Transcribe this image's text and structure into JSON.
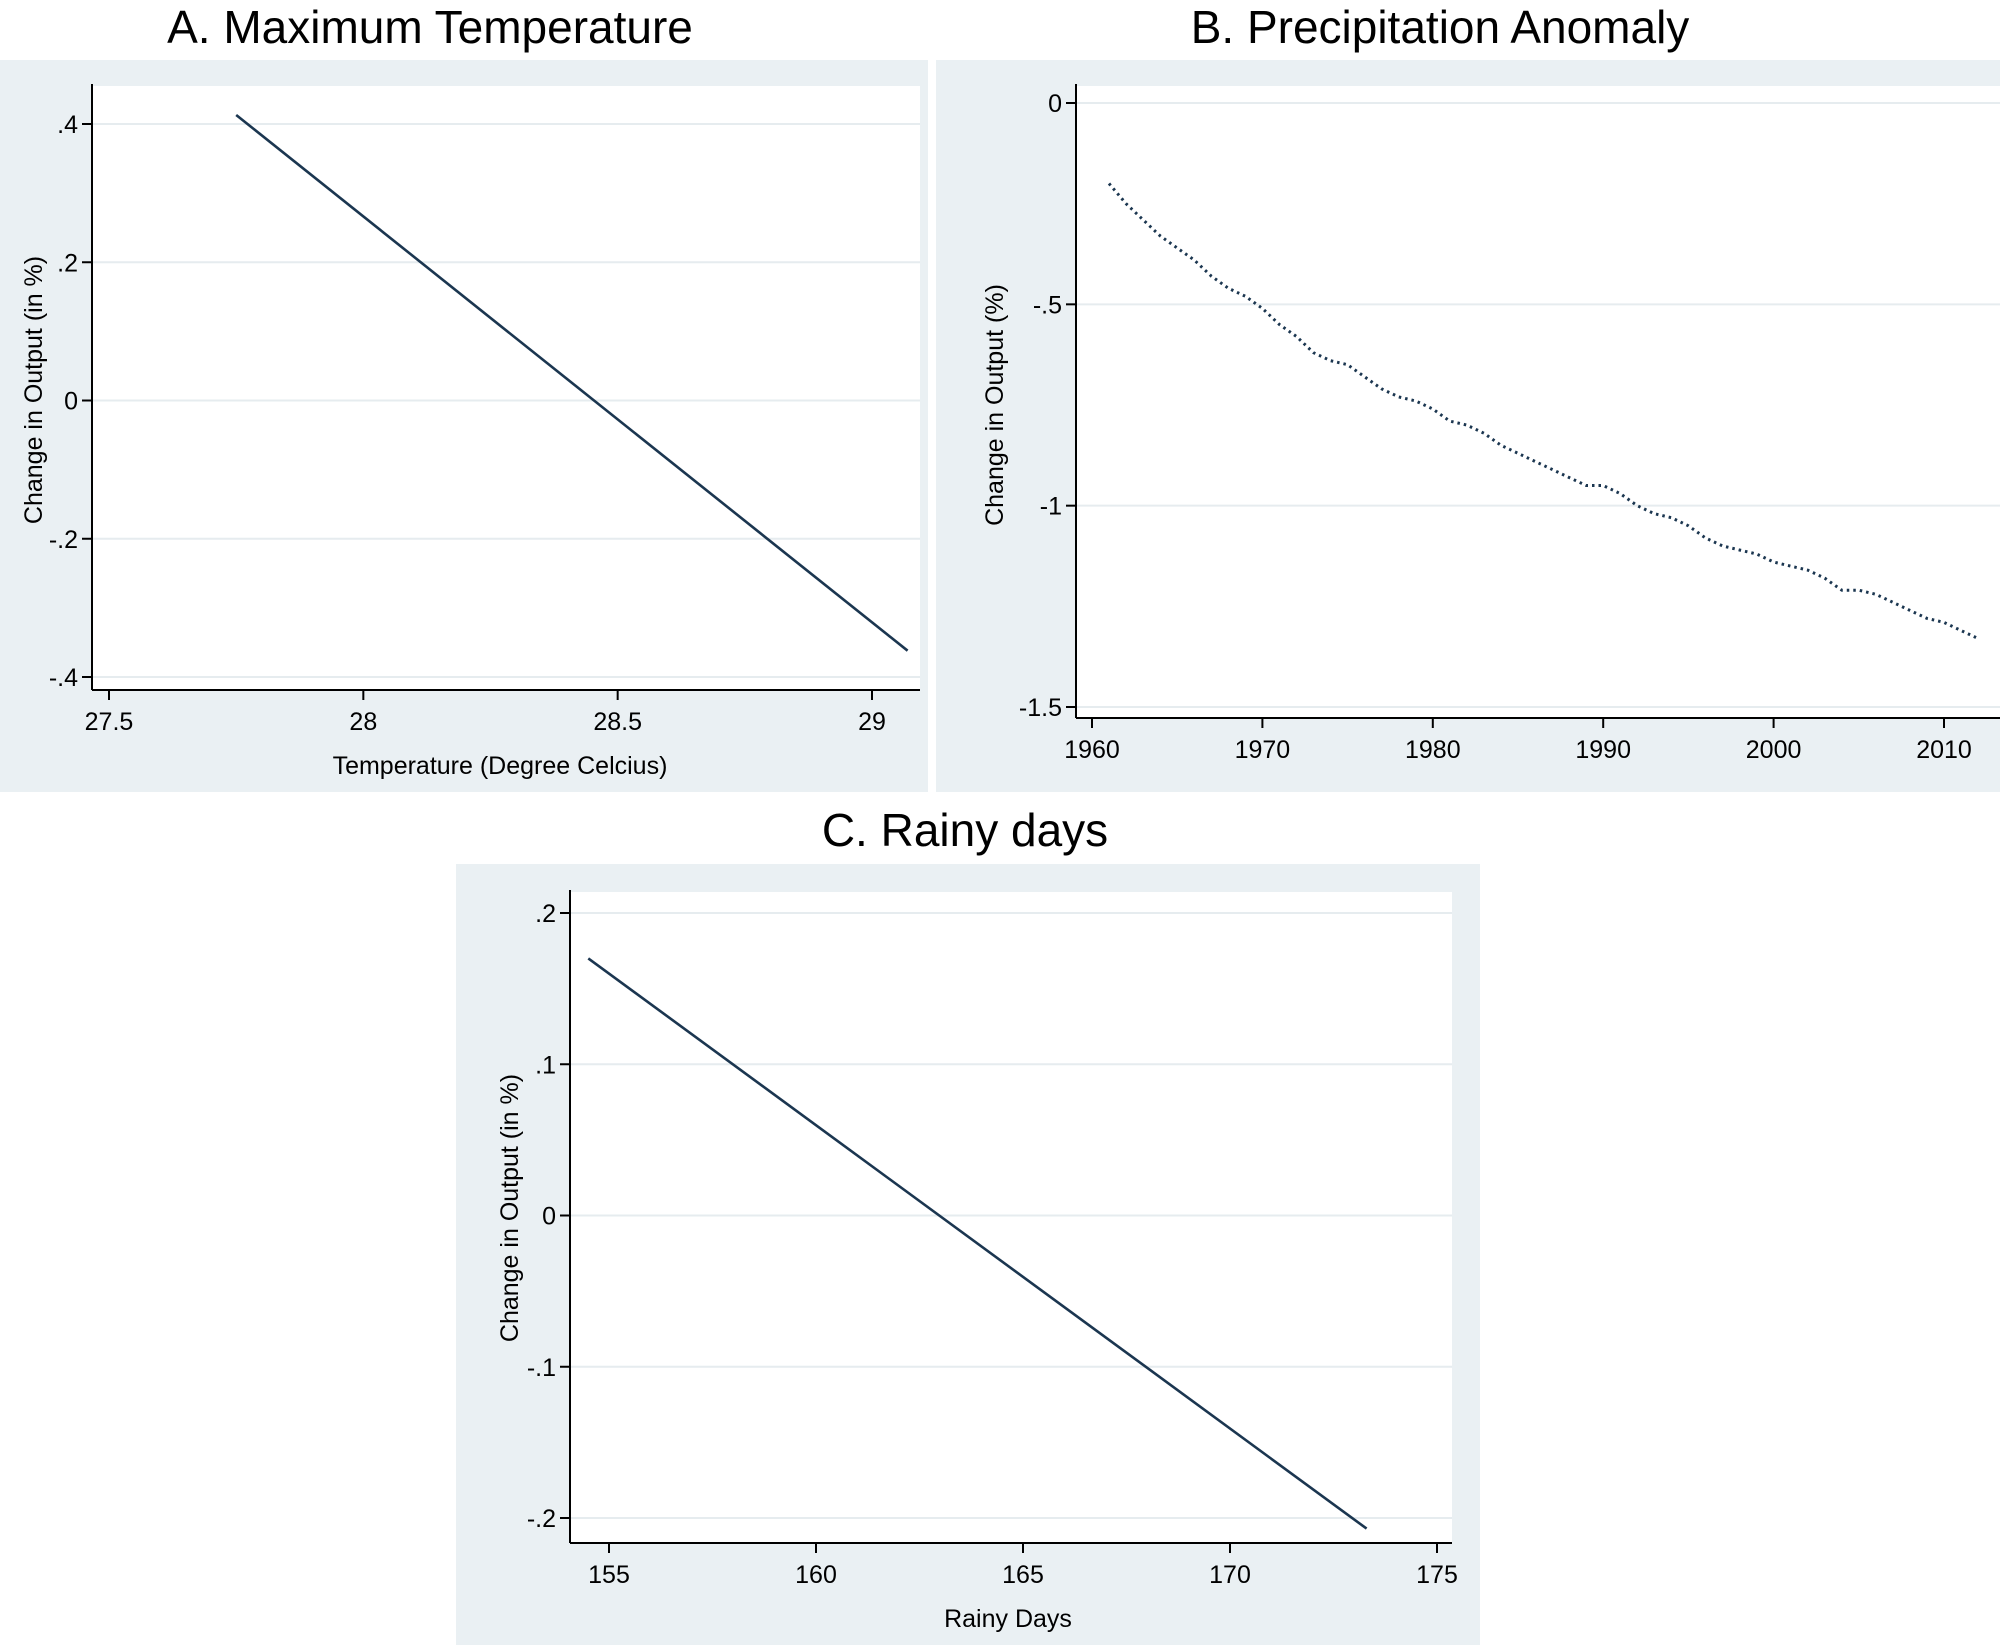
{
  "colors": {
    "panel_bg": "#eaf0f3",
    "plot_bg": "#ffffff",
    "grid": "#e6ecef",
    "line": "#1b3650",
    "axis": "#000000"
  },
  "chart_data": [
    {
      "type": "line",
      "title": "A. Maximum Temperature",
      "xlabel": "Temperature (Degree Celcius)",
      "ylabel": "Change in Output (in %)",
      "xlim": [
        27.5,
        29.05
      ],
      "ylim": [
        -0.4,
        0.45
      ],
      "xticks": [
        27.5,
        28,
        28.5,
        29
      ],
      "xtick_labels": [
        "27.5",
        "28",
        "28.5",
        "29"
      ],
      "yticks": [
        0.4,
        0.2,
        0,
        -0.2,
        -0.4
      ],
      "ytick_labels": [
        ".4",
        ".2",
        "0",
        "-.2",
        "-.4"
      ],
      "grid": true,
      "line_style": "solid",
      "series": [
        {
          "x": [
            27.75,
            29.07
          ],
          "values": [
            0.413,
            -0.362
          ]
        }
      ]
    },
    {
      "type": "line",
      "title": "B. Precipitation Anomaly",
      "xlabel": "",
      "ylabel": "Change in Output (%)",
      "xlim": [
        1959,
        2014
      ],
      "ylim": [
        -1.5,
        0
      ],
      "xticks": [
        1960,
        1970,
        1980,
        1990,
        2000,
        2010
      ],
      "xtick_labels": [
        "1960",
        "1970",
        "1980",
        "1990",
        "2000",
        "2010"
      ],
      "yticks": [
        0,
        -0.5,
        -1,
        -1.5
      ],
      "ytick_labels": [
        "0",
        "-.5",
        "-1",
        "-1.5"
      ],
      "grid": true,
      "line_style": "dotted",
      "series": [
        {
          "x": [
            1961,
            1962,
            1963,
            1964,
            1965,
            1966,
            1967,
            1968,
            1969,
            1970,
            1971,
            1972,
            1973,
            1974,
            1975,
            1976,
            1977,
            1978,
            1979,
            1980,
            1981,
            1982,
            1983,
            1984,
            1985,
            1986,
            1987,
            1988,
            1989,
            1990,
            1991,
            1992,
            1993,
            1994,
            1995,
            1996,
            1997,
            1998,
            1999,
            2000,
            2001,
            2002,
            2003,
            2004,
            2005,
            2006,
            2007,
            2008,
            2009,
            2010,
            2011,
            2012
          ],
          "values": [
            -0.2,
            -0.25,
            -0.29,
            -0.33,
            -0.36,
            -0.39,
            -0.43,
            -0.46,
            -0.48,
            -0.51,
            -0.55,
            -0.58,
            -0.62,
            -0.64,
            -0.65,
            -0.68,
            -0.71,
            -0.73,
            -0.74,
            -0.76,
            -0.79,
            -0.8,
            -0.82,
            -0.85,
            -0.87,
            -0.89,
            -0.91,
            -0.93,
            -0.95,
            -0.95,
            -0.97,
            -1.0,
            -1.02,
            -1.03,
            -1.05,
            -1.08,
            -1.1,
            -1.11,
            -1.12,
            -1.14,
            -1.15,
            -1.16,
            -1.18,
            -1.21,
            -1.21,
            -1.22,
            -1.24,
            -1.26,
            -1.28,
            -1.29,
            -1.31,
            -1.33
          ]
        }
      ]
    },
    {
      "type": "line",
      "title": "C. Rainy days",
      "xlabel": "Rainy Days",
      "ylabel": "Change in Output (in %)",
      "xlim": [
        154,
        175.3
      ],
      "ylim": [
        -0.21,
        0.2
      ],
      "xticks": [
        155,
        160,
        165,
        170,
        175
      ],
      "xtick_labels": [
        "155",
        "160",
        "165",
        "170",
        "175"
      ],
      "yticks": [
        0.2,
        0.1,
        0,
        -0.1,
        -0.2
      ],
      "ytick_labels": [
        ".2",
        ".1",
        "0",
        "-.1",
        "-.2"
      ],
      "grid": true,
      "line_style": "solid",
      "series": [
        {
          "x": [
            154.5,
            173.3
          ],
          "values": [
            0.17,
            -0.207
          ]
        }
      ]
    }
  ]
}
